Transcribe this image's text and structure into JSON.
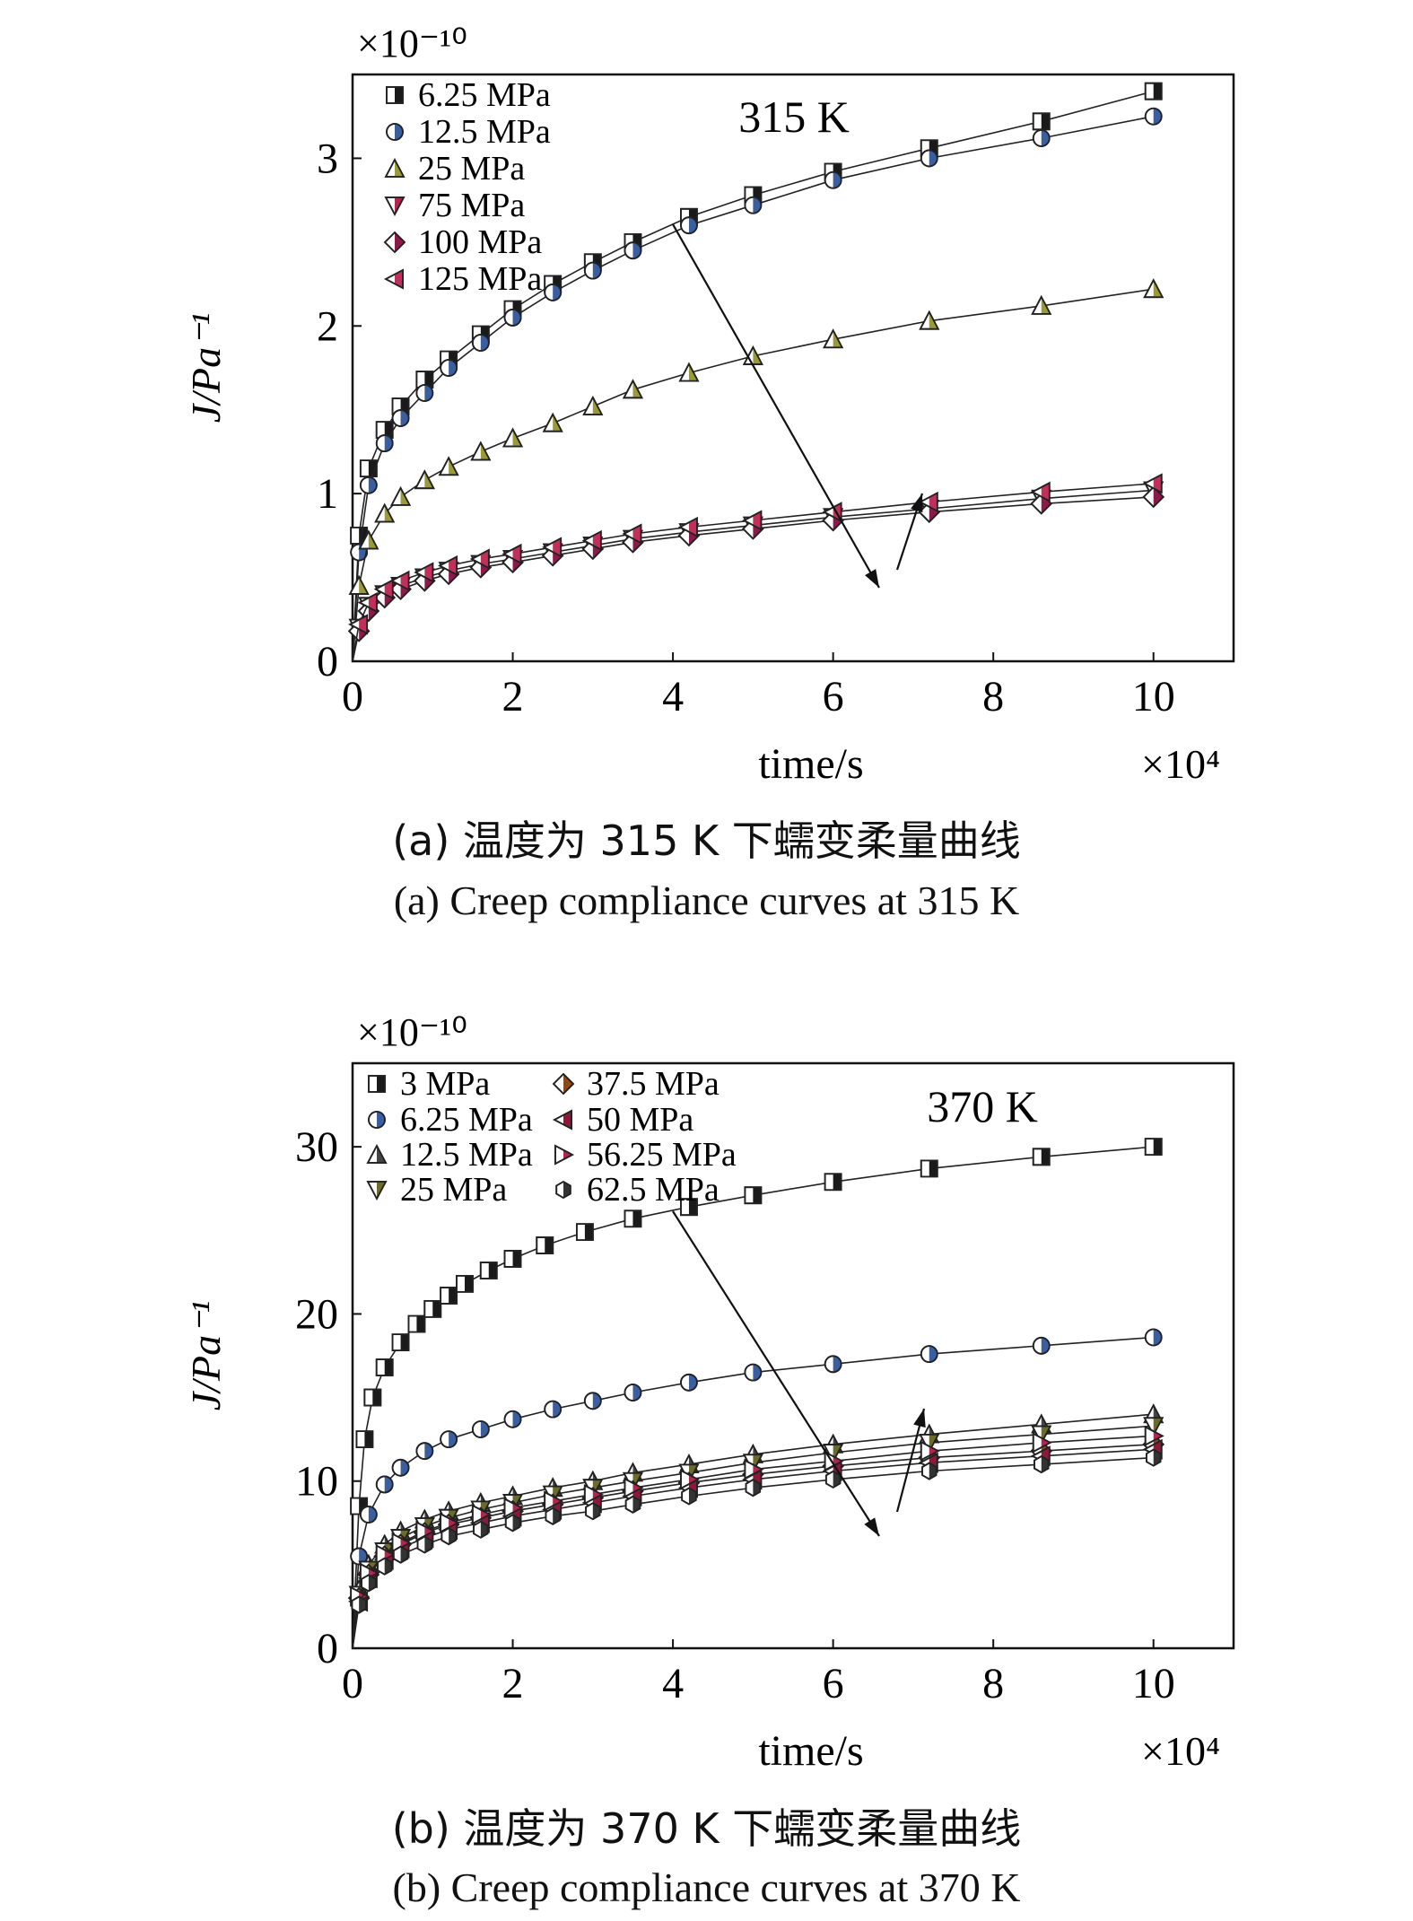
{
  "chart_data": [
    {
      "type": "line",
      "annotation": "315 K",
      "xlabel": "time/s",
      "x_multiplier": "×10⁴",
      "ylabel": "J/Pa⁻¹",
      "y_multiplier": "×10⁻¹⁰",
      "xlim": [
        0,
        11
      ],
      "ylim": [
        0,
        3.5
      ],
      "xticks": [
        "0",
        "2",
        "4",
        "6",
        "8",
        "10"
      ],
      "yticks": [
        "0",
        "1",
        "2",
        "3"
      ],
      "legend_position": "top-left",
      "series": [
        {
          "name": "6.25 MPa",
          "marker": "square-half",
          "color": "#1a1a1a",
          "x": [
            0.08,
            0.2,
            0.4,
            0.6,
            0.9,
            1.2,
            1.6,
            2.0,
            2.5,
            3.0,
            3.5,
            4.2,
            5.0,
            6.0,
            7.2,
            8.6,
            10.0
          ],
          "y": [
            0.75,
            1.15,
            1.38,
            1.52,
            1.68,
            1.8,
            1.95,
            2.1,
            2.25,
            2.38,
            2.5,
            2.65,
            2.78,
            2.92,
            3.06,
            3.22,
            3.4
          ]
        },
        {
          "name": "12.5 MPa",
          "marker": "circle-half",
          "color": "#3b5f9e",
          "x": [
            0.08,
            0.2,
            0.4,
            0.6,
            0.9,
            1.2,
            1.6,
            2.0,
            2.5,
            3.0,
            3.5,
            4.2,
            5.0,
            6.0,
            7.2,
            8.6,
            10.0
          ],
          "y": [
            0.65,
            1.05,
            1.3,
            1.45,
            1.6,
            1.75,
            1.9,
            2.05,
            2.2,
            2.33,
            2.45,
            2.6,
            2.72,
            2.87,
            3.0,
            3.12,
            3.25
          ]
        },
        {
          "name": "25 MPa",
          "marker": "triangle-up",
          "color": "#9a9a3a",
          "x": [
            0.08,
            0.2,
            0.4,
            0.6,
            0.9,
            1.2,
            1.6,
            2.0,
            2.5,
            3.0,
            3.5,
            4.2,
            5.0,
            6.0,
            7.2,
            8.6,
            10.0
          ],
          "y": [
            0.45,
            0.72,
            0.88,
            0.98,
            1.08,
            1.16,
            1.25,
            1.33,
            1.42,
            1.52,
            1.62,
            1.72,
            1.82,
            1.92,
            2.03,
            2.12,
            2.22
          ]
        },
        {
          "name": "75 MPa",
          "marker": "triangle-down",
          "color": "#b0264e",
          "x": [
            0.08,
            0.2,
            0.4,
            0.6,
            0.9,
            1.2,
            1.6,
            2.0,
            2.5,
            3.0,
            3.5,
            4.2,
            5.0,
            6.0,
            7.2,
            8.6,
            10.0
          ],
          "y": [
            0.2,
            0.33,
            0.4,
            0.45,
            0.5,
            0.54,
            0.58,
            0.61,
            0.65,
            0.69,
            0.73,
            0.77,
            0.81,
            0.86,
            0.91,
            0.97,
            1.02
          ]
        },
        {
          "name": "100 MPa",
          "marker": "diamond-half",
          "color": "#8b1a4a",
          "x": [
            0.08,
            0.2,
            0.4,
            0.6,
            0.9,
            1.2,
            1.6,
            2.0,
            2.5,
            3.0,
            3.5,
            4.2,
            5.0,
            6.0,
            7.2,
            8.6,
            10.0
          ],
          "y": [
            0.18,
            0.3,
            0.38,
            0.43,
            0.48,
            0.52,
            0.56,
            0.59,
            0.63,
            0.67,
            0.71,
            0.75,
            0.79,
            0.84,
            0.89,
            0.94,
            0.98
          ]
        },
        {
          "name": "125 MPa",
          "marker": "triangle-left",
          "color": "#c0305a",
          "x": [
            0.08,
            0.2,
            0.4,
            0.6,
            0.9,
            1.2,
            1.6,
            2.0,
            2.5,
            3.0,
            3.5,
            4.2,
            5.0,
            6.0,
            7.2,
            8.6,
            10.0
          ],
          "y": [
            0.22,
            0.35,
            0.43,
            0.48,
            0.53,
            0.57,
            0.61,
            0.64,
            0.68,
            0.72,
            0.76,
            0.8,
            0.84,
            0.89,
            0.95,
            1.01,
            1.06
          ]
        }
      ]
    },
    {
      "type": "line",
      "annotation": "370 K",
      "xlabel": "time/s",
      "x_multiplier": "×10⁴",
      "ylabel": "J/Pa⁻¹",
      "y_multiplier": "×10⁻¹⁰",
      "xlim": [
        0,
        11
      ],
      "ylim": [
        0,
        35
      ],
      "xticks": [
        "0",
        "2",
        "4",
        "6",
        "8",
        "10"
      ],
      "yticks": [
        "0",
        "10",
        "20",
        "30"
      ],
      "legend_position": "top-left",
      "series": [
        {
          "name": "3 MPa",
          "marker": "square-half",
          "color": "#1a1a1a",
          "x": [
            0.08,
            0.15,
            0.25,
            0.4,
            0.6,
            0.8,
            1.0,
            1.2,
            1.4,
            1.7,
            2.0,
            2.4,
            2.9,
            3.5,
            4.2,
            5.0,
            6.0,
            7.2,
            8.6,
            10.0
          ],
          "y": [
            8.5,
            12.5,
            15.0,
            16.8,
            18.3,
            19.4,
            20.3,
            21.1,
            21.8,
            22.6,
            23.3,
            24.1,
            24.9,
            25.7,
            26.4,
            27.1,
            27.9,
            28.7,
            29.4,
            30.0
          ]
        },
        {
          "name": "6.25 MPa",
          "marker": "circle-half",
          "color": "#3b5f9e",
          "x": [
            0.08,
            0.2,
            0.4,
            0.6,
            0.9,
            1.2,
            1.6,
            2.0,
            2.5,
            3.0,
            3.5,
            4.2,
            5.0,
            6.0,
            7.2,
            8.6,
            10.0
          ],
          "y": [
            5.5,
            8.0,
            9.8,
            10.8,
            11.8,
            12.5,
            13.1,
            13.7,
            14.3,
            14.8,
            15.3,
            15.9,
            16.5,
            17.0,
            17.6,
            18.1,
            18.6
          ]
        },
        {
          "name": "12.5 MPa",
          "marker": "triangle-up",
          "color": "#444444",
          "x": [
            0.08,
            0.2,
            0.4,
            0.6,
            0.9,
            1.2,
            1.6,
            2.0,
            2.5,
            3.0,
            3.5,
            4.2,
            5.0,
            6.0,
            7.2,
            8.6,
            10.0
          ],
          "y": [
            3.5,
            5.0,
            6.2,
            7.0,
            7.7,
            8.2,
            8.7,
            9.1,
            9.6,
            10.0,
            10.5,
            11.0,
            11.6,
            12.2,
            12.8,
            13.4,
            14.0
          ]
        },
        {
          "name": "25 MPa",
          "marker": "triangle-down",
          "color": "#6b6b2a",
          "x": [
            0.08,
            0.2,
            0.4,
            0.6,
            0.9,
            1.2,
            1.6,
            2.0,
            2.5,
            3.0,
            3.5,
            4.2,
            5.0,
            6.0,
            7.2,
            8.6,
            10.0
          ],
          "y": [
            3.2,
            4.7,
            5.8,
            6.6,
            7.3,
            7.8,
            8.3,
            8.7,
            9.2,
            9.6,
            10.0,
            10.5,
            11.1,
            11.7,
            12.3,
            12.8,
            13.3
          ]
        },
        {
          "name": "37.5 MPa",
          "marker": "diamond-half",
          "color": "#8b4a1a",
          "x": [
            0.08,
            0.2,
            0.4,
            0.6,
            0.9,
            1.2,
            1.6,
            2.0,
            2.5,
            3.0,
            3.5,
            4.2,
            5.0,
            6.0,
            7.2,
            8.6,
            10.0
          ],
          "y": [
            3.0,
            4.4,
            5.5,
            6.2,
            6.9,
            7.4,
            7.8,
            8.2,
            8.6,
            9.0,
            9.4,
            9.9,
            10.4,
            10.9,
            11.4,
            11.8,
            12.2
          ]
        },
        {
          "name": "50 MPa",
          "marker": "triangle-left",
          "color": "#8b1a3a",
          "x": [
            0.08,
            0.2,
            0.4,
            0.6,
            0.9,
            1.2,
            1.6,
            2.0,
            2.5,
            3.0,
            3.5,
            4.2,
            5.0,
            6.0,
            7.2,
            8.6,
            10.0
          ],
          "y": [
            2.8,
            4.2,
            5.3,
            6.0,
            6.6,
            7.1,
            7.5,
            7.9,
            8.3,
            8.7,
            9.1,
            9.6,
            10.1,
            10.6,
            11.1,
            11.5,
            11.9
          ]
        },
        {
          "name": "56.25 MPa",
          "marker": "triangle-right",
          "color": "#b0264e",
          "x": [
            0.08,
            0.2,
            0.4,
            0.6,
            0.9,
            1.2,
            1.6,
            2.0,
            2.5,
            3.0,
            3.5,
            4.2,
            5.0,
            6.0,
            7.2,
            8.6,
            10.0
          ],
          "y": [
            3.1,
            4.5,
            5.6,
            6.3,
            7.0,
            7.5,
            8.0,
            8.4,
            8.8,
            9.2,
            9.6,
            10.1,
            10.7,
            11.2,
            11.8,
            12.3,
            12.7
          ]
        },
        {
          "name": "62.5 MPa",
          "marker": "hexagon-half",
          "color": "#333333",
          "x": [
            0.08,
            0.2,
            0.4,
            0.6,
            0.9,
            1.2,
            1.6,
            2.0,
            2.5,
            3.0,
            3.5,
            4.2,
            5.0,
            6.0,
            7.2,
            8.6,
            10.0
          ],
          "y": [
            2.6,
            3.9,
            4.9,
            5.6,
            6.2,
            6.7,
            7.1,
            7.5,
            7.9,
            8.2,
            8.6,
            9.1,
            9.6,
            10.1,
            10.6,
            11.0,
            11.4
          ]
        }
      ]
    }
  ],
  "captions": {
    "a_cn": "(a) 温度为 315 K 下蠕变柔量曲线",
    "a_en": "(a) Creep compliance curves at 315 K",
    "b_cn": "(b) 温度为 370 K 下蠕变柔量曲线",
    "b_en": "(b) Creep compliance curves at 370 K"
  }
}
